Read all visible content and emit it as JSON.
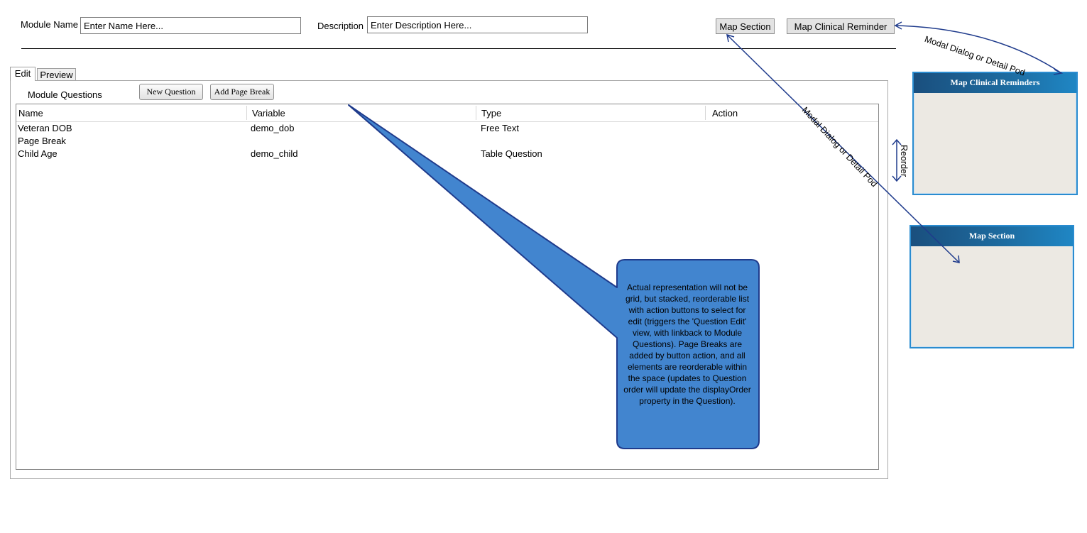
{
  "header": {
    "module_name_label": "Module Name",
    "module_name_placeholder": "Enter Name Here...",
    "description_label": "Description",
    "description_placeholder": "Enter Description Here...",
    "map_section_button": "Map Section",
    "map_clinical_reminder_button": "Map Clinical Reminder"
  },
  "tabs": [
    {
      "label": "Edit",
      "active": true
    },
    {
      "label": "Preview",
      "active": false
    }
  ],
  "module_questions": {
    "title": "Module Questions",
    "new_question_button": "New Question",
    "add_page_break_button": "Add Page Break",
    "columns": [
      "Name",
      "Variable",
      "Type",
      "Action"
    ],
    "rows": [
      {
        "name": "Veteran DOB",
        "variable": "demo_dob",
        "type": "Free Text",
        "action": ""
      },
      {
        "name": "Page Break",
        "variable": "",
        "type": "",
        "action": ""
      },
      {
        "name": "Child Age",
        "variable": "demo_child",
        "type": "Table Question",
        "action": ""
      }
    ]
  },
  "callout": {
    "text": "Actual representation will not be grid, but stacked, reorderable list with action buttons to select for edit (triggers the 'Question Edit' view, with linkback to Module Questions).  Page Breaks are added by button action, and all elements are reorderable within the space (updates to Question order will update the displayOrder property in the Question).",
    "fill_color": "#4285cf",
    "border_color": "#1f3b8c"
  },
  "annotations": {
    "modal_dialog_top": "Modal Dialog or Detail Pod",
    "modal_dialog_diagonal": "Modal Dialog or Detail Pod",
    "reorder": "Reorder"
  },
  "pods": {
    "clinical_reminders_title": "Map Clinical Reminders",
    "map_section_title": "Map Section"
  },
  "colors": {
    "arrow": "#1f3b8c",
    "pod_border": "#2a8cd0",
    "pod_title_bg": "#1d6a9e"
  }
}
